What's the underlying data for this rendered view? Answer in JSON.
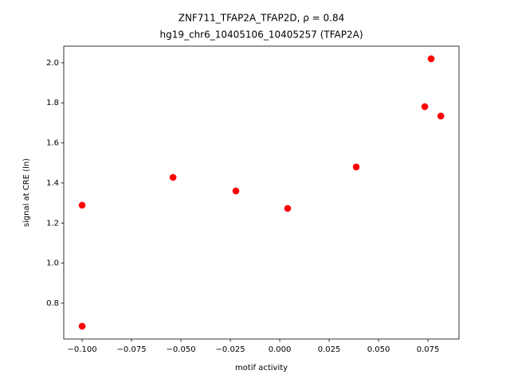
{
  "chart_data": {
    "type": "scatter",
    "title": "ZNF711_TFAP2A_TFAP2D, ρ = 0.84",
    "subtitle": "hg19_chr6_10405106_10405257 (TFAP2A)",
    "x_label": "motif activity",
    "y_label": "signal at CRE (ln)",
    "color": "#ff0000",
    "x": [
      -0.1,
      -0.1,
      -0.054,
      -0.0222,
      0.004,
      0.0387,
      0.0734,
      0.0766,
      0.0815
    ],
    "values": [
      1.289,
      0.685,
      1.428,
      1.36,
      1.273,
      1.48,
      1.781,
      2.02,
      1.734
    ],
    "xlim": [
      -0.1093,
      0.0907
    ],
    "ylim": [
      0.621,
      2.083
    ],
    "xticks": [
      {
        "value": -0.1,
        "label": "−0.100"
      },
      {
        "value": -0.075,
        "label": "−0.075"
      },
      {
        "value": -0.05,
        "label": "−0.050"
      },
      {
        "value": -0.025,
        "label": "−0.025"
      },
      {
        "value": 0,
        "label": "0.000"
      },
      0.025,
      {
        "value": 0.05,
        "label": "0.050"
      },
      0.075
    ],
    "yticks": [
      0.8,
      {
        "value": 1,
        "label": "1.0"
      },
      1.2,
      1.4,
      1.6,
      1.8,
      {
        "value": 2,
        "label": "2.0"
      }
    ]
  }
}
